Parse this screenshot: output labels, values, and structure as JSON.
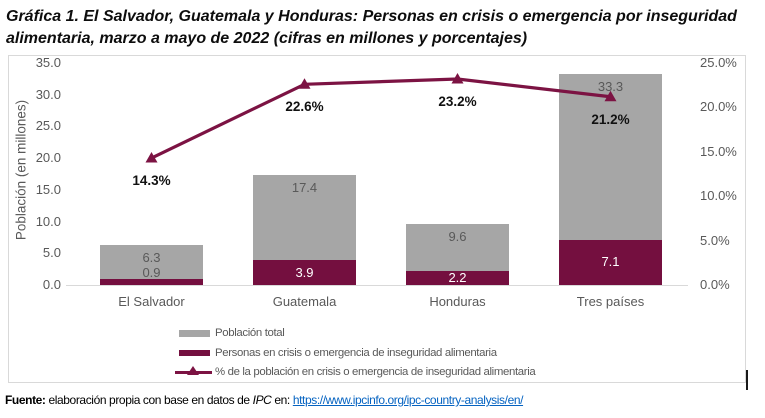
{
  "title_lines": [
    "Gráfica 1. El Salvador, Guatemala y Honduras: Personas en crisis o emergencia por inseguridad",
    "alimentaria, marzo a mayo de 2022 (cifras en millones y porcentajes)"
  ],
  "chart_data": {
    "type": "bar",
    "categories": [
      "El Salvador",
      "Guatemala",
      "Honduras",
      "Tres países"
    ],
    "series": [
      {
        "name": "Población total",
        "kind": "bar",
        "color": "#A6A6A6",
        "values": [
          6.3,
          17.4,
          9.6,
          33.3
        ],
        "value_labels": [
          "6.3",
          "17.4",
          "9.6",
          "33.3"
        ],
        "label_color": "#595959"
      },
      {
        "name": "Personas en crisis o emergencia de inseguridad alimentaria",
        "kind": "bar",
        "color": "#740F3F",
        "values": [
          0.9,
          3.9,
          2.2,
          7.1
        ],
        "value_labels": [
          "0.9",
          "3.9",
          "2.2",
          "7.1"
        ],
        "label_color": "#FFFFFF"
      },
      {
        "name": "% de la población en crisis o emergencia de inseguridad alimentaria",
        "kind": "line",
        "color": "#7C1343",
        "values": [
          14.3,
          22.6,
          23.2,
          21.2
        ],
        "value_labels": [
          "14.3%",
          "22.6%",
          "23.2%",
          "21.2%"
        ],
        "axis": "right"
      }
    ],
    "left_axis": {
      "title": "Población (en millones)",
      "min": 0,
      "max": 35,
      "ticks": [
        "0.0",
        "5.0",
        "10.0",
        "15.0",
        "20.0",
        "25.0",
        "30.0",
        "35.0"
      ]
    },
    "right_axis": {
      "min": 0,
      "max": 25,
      "ticks": [
        "0.0%",
        "5.0%",
        "10.0%",
        "15.0%",
        "20.0%",
        "25.0%"
      ]
    },
    "legend_position": "bottom-left",
    "grid": false
  },
  "footer": {
    "label": "Fuente:",
    "text1": " elaboración propia con base en datos de ",
    "ipc": "IPC",
    "text2": " en: ",
    "link": "https://www.ipcinfo.org/ipc-country-analysis/en/"
  }
}
